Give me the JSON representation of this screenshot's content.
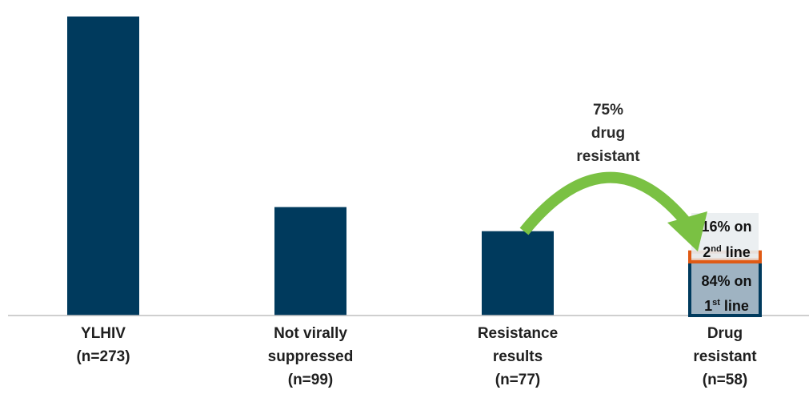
{
  "chart_data": {
    "type": "bar",
    "categories": [
      [
        "YLHIV",
        "(n=273)"
      ],
      [
        "Not virally",
        "suppressed",
        "(n=99)"
      ],
      [
        "Resistance",
        "results",
        "(n=77)"
      ],
      [
        "Drug",
        "resistant",
        "(n=58)"
      ]
    ],
    "values": [
      273,
      99,
      77,
      58
    ],
    "ylim": [
      0,
      280
    ],
    "grid": false,
    "bar_color": "#003a5d",
    "stack_last": [
      {
        "name": "1st line",
        "value": 49,
        "color": "#9fb3c2",
        "label": [
          "84% on",
          "1",
          "st",
          " line"
        ]
      },
      {
        "name": "2nd line",
        "value": 9,
        "color": "#e8c9b8",
        "label": [
          "16% on",
          "2",
          "nd",
          " line"
        ]
      }
    ],
    "annotation": {
      "lines": [
        "75%",
        "drug",
        "resistant"
      ],
      "arrow_color": "#7ac143"
    }
  }
}
